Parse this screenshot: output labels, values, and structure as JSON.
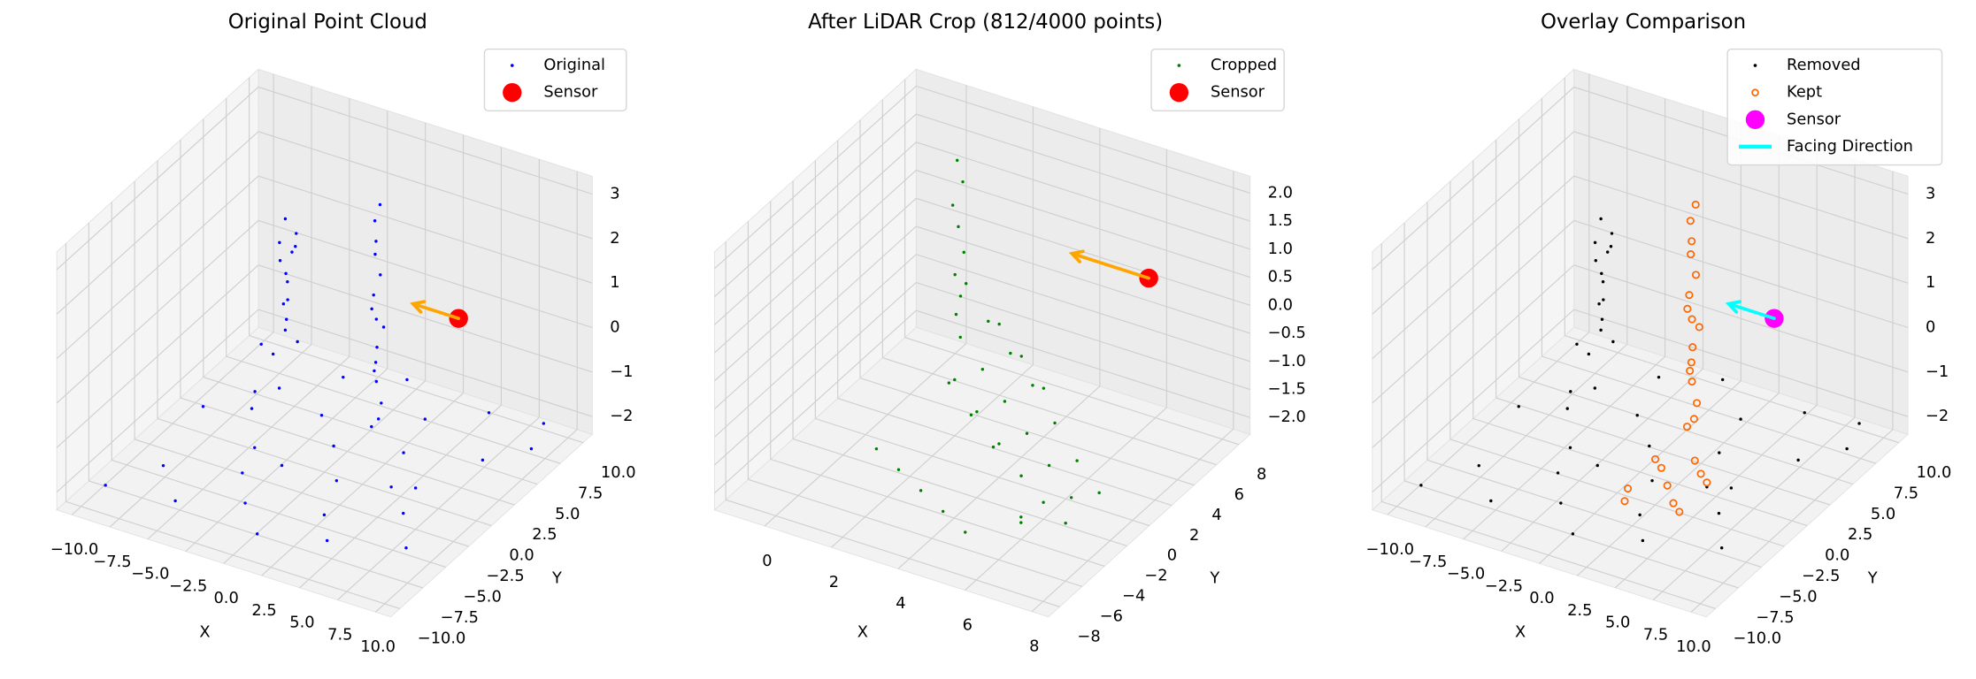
{
  "chart_data": [
    {
      "type": "scatter3d",
      "title": "Original Point Cloud",
      "xlabel": "X",
      "ylabel": "Y",
      "xlim": [
        -11,
        11
      ],
      "ylim": [
        -11,
        11
      ],
      "zlim": [
        -2.4,
        3.4
      ],
      "xticks": [
        {
          "value": -10,
          "label": "−10.0"
        },
        {
          "value": -7.5,
          "label": "−7.5"
        },
        {
          "value": -5,
          "label": "−5.0"
        },
        {
          "value": -2.5,
          "label": "−2.5"
        },
        {
          "value": 0,
          "label": "0.0"
        },
        {
          "value": 2.5,
          "label": "2.5"
        },
        {
          "value": 5,
          "label": "5.0"
        },
        {
          "value": 7.5,
          "label": "7.5"
        },
        {
          "value": 10,
          "label": "10.0"
        }
      ],
      "yticks": [
        {
          "value": -10,
          "label": "−10.0"
        },
        {
          "value": -7.5,
          "label": "−7.5"
        },
        {
          "value": -5,
          "label": "−5.0"
        },
        {
          "value": -2.5,
          "label": "−2.5"
        },
        {
          "value": 0,
          "label": "0.0"
        },
        {
          "value": 2.5,
          "label": "2.5"
        },
        {
          "value": 5,
          "label": "5.0"
        },
        {
          "value": 7.5,
          "label": "7.5"
        },
        {
          "value": 10,
          "label": "10.0"
        }
      ],
      "zticks": [
        {
          "value": -2,
          "label": "−2"
        },
        {
          "value": -1,
          "label": "−1"
        },
        0,
        1,
        2,
        3
      ],
      "grid": true,
      "legend": "upper right",
      "series": [
        {
          "name": "Original",
          "color": "#0000ff",
          "marker": "dot",
          "x": [
            -9,
            -7,
            -5,
            -3,
            -1,
            1,
            3,
            5,
            7,
            9,
            -8,
            -6,
            -4,
            -2,
            0,
            2,
            4,
            6,
            8,
            10,
            -9,
            -6,
            -3,
            0,
            3,
            6,
            9,
            -7,
            -1,
            5,
            -5.5,
            -4.5,
            -5,
            -4.8,
            -5.3,
            -4.6,
            -5.1,
            -4.9,
            -5.4,
            -4.7,
            -5.2,
            -4.4,
            -5,
            -4.8,
            0.8,
            1.2,
            1,
            0.9,
            1.1,
            1.3,
            0.7,
            1,
            1.2,
            0.8,
            1.1,
            0.9,
            1,
            1.2,
            0.8,
            1
          ],
          "y": [
            -9,
            -6,
            -8,
            -4,
            -7,
            -9,
            -5,
            -8,
            -3,
            -6,
            0,
            2,
            -1,
            3,
            1,
            -2,
            2,
            0,
            4,
            6,
            8,
            5,
            7,
            9,
            6,
            8,
            9,
            4,
            -3,
            -1,
            3.5,
            4.5,
            4,
            3.8,
            4.3,
            3.6,
            4.4,
            3.9,
            4.1,
            4.6,
            3.7,
            4.2,
            4,
            4.4,
            3.8,
            4.2,
            4,
            4.1,
            3.9,
            4.3,
            4,
            3.7,
            4.1,
            4.2,
            3.8,
            4,
            4.4,
            3.9,
            4.1,
            4
          ],
          "z": [
            -2,
            -1.9,
            -2.1,
            -2,
            -1.9,
            -2,
            -2.1,
            -1.9,
            -2,
            -2,
            -1.8,
            -2,
            -2.1,
            -1.9,
            -2,
            -2,
            -1.9,
            -2.1,
            -2,
            -1.9,
            -2,
            -2.1,
            -1.9,
            -2,
            -2,
            -1.9,
            -2,
            -2.1,
            -1.8,
            -2,
            -1,
            -0.8,
            -0.5,
            -0.2,
            0,
            0.3,
            0.5,
            0.8,
            1,
            1.3,
            1.5,
            1.7,
            2,
            1.2,
            -2,
            -1.5,
            -1,
            -0.6,
            -0.2,
            0.2,
            0.6,
            1,
            1.4,
            1.8,
            2.2,
            2.6,
            2.9,
            -1.8,
            -0.8,
            0.4
          ]
        },
        {
          "name": "Sensor",
          "color": "#ff0000",
          "marker": "big",
          "x": [
            4
          ],
          "y": [
            8
          ],
          "z": [
            0
          ]
        }
      ],
      "arrow": {
        "color": "#ffa500",
        "x": [
          4,
          1
        ],
        "y": [
          8,
          8
        ],
        "z": [
          0,
          0
        ]
      }
    },
    {
      "type": "scatter3d",
      "title": "After LiDAR Crop (812/4000 points)",
      "xlabel": "X",
      "ylabel": "Y",
      "xlim": [
        -1.5,
        8.5
      ],
      "ylim": [
        -9,
        9
      ],
      "zlim": [
        -2.3,
        2.3
      ],
      "xticks": [
        0,
        2,
        4,
        6,
        8
      ],
      "yticks": [
        {
          "value": -8,
          "label": "−8"
        },
        {
          "value": -6,
          "label": "−6"
        },
        {
          "value": -4,
          "label": "−4"
        },
        {
          "value": -2,
          "label": "−2"
        },
        0,
        2,
        4,
        6,
        8
      ],
      "zticks": [
        {
          "value": -2,
          "label": "−2.0"
        },
        {
          "value": -1.5,
          "label": "−1.5"
        },
        {
          "value": -1,
          "label": "−1.0"
        },
        {
          "value": -0.5,
          "label": "−0.5"
        },
        {
          "value": 0,
          "label": "0.0"
        },
        {
          "value": 0.5,
          "label": "0.5"
        },
        {
          "value": 1,
          "label": "1.0"
        },
        {
          "value": 1.5,
          "label": "1.5"
        },
        {
          "value": 2,
          "label": "2.0"
        }
      ],
      "grid": true,
      "legend": "upper right",
      "series": [
        {
          "name": "Cropped",
          "color": "#008000",
          "marker": "dot",
          "x": [
            0.4,
            0.5,
            0.3,
            0.4,
            0.6,
            0.4,
            0.5,
            0.3,
            1,
            2,
            3,
            4,
            5,
            6,
            7,
            1.5,
            2.5,
            3.5,
            4.5,
            5.5,
            6.5,
            2,
            3,
            4,
            5,
            6,
            1,
            2,
            3,
            4,
            5,
            6,
            7,
            3,
            4,
            5,
            2.5,
            3.5,
            4.5,
            6
          ],
          "y": [
            7,
            7.2,
            6.9,
            7.1,
            7,
            6.8,
            7,
            7.2,
            6,
            5,
            4,
            3,
            2,
            1,
            0,
            4,
            3,
            2,
            1,
            0,
            -1,
            2,
            1,
            0,
            -1,
            -2,
            -2,
            -3,
            -4,
            -5,
            -6,
            -4,
            -3,
            3,
            2,
            1,
            0,
            -1,
            -2,
            -4
          ],
          "z": [
            1.4,
            1,
            0.6,
            0.2,
            -0.2,
            -0.6,
            -1,
            -1.4,
            -0.5,
            -0.8,
            -1,
            -1.2,
            -1.5,
            -1.8,
            -2,
            -1,
            -1.2,
            -1.4,
            -1.6,
            -1.8,
            -2,
            -1.3,
            -1.5,
            -1.7,
            -1.9,
            -2,
            -2,
            -2,
            -2,
            -2,
            -2,
            -2,
            -2,
            -0.3,
            -0.5,
            -0.7,
            -0.9,
            -1.1,
            -1.3,
            -1.9
          ]
        },
        {
          "name": "Sensor",
          "color": "#ff0000",
          "marker": "big",
          "x": [
            5.8
          ],
          "y": [
            8
          ],
          "z": [
            0.15
          ]
        }
      ],
      "arrow": {
        "color": "#ffa500",
        "x": [
          5.8,
          3.5
        ],
        "y": [
          8,
          8
        ],
        "z": [
          0.15,
          0.15
        ]
      }
    },
    {
      "type": "scatter3d",
      "title": "Overlay Comparison",
      "xlabel": "X",
      "ylabel": "Y",
      "xlim": [
        -11,
        11
      ],
      "ylim": [
        -11,
        11
      ],
      "zlim": [
        -2.4,
        3.4
      ],
      "xticks": [
        {
          "value": -10,
          "label": "−10.0"
        },
        {
          "value": -7.5,
          "label": "−7.5"
        },
        {
          "value": -5,
          "label": "−5.0"
        },
        {
          "value": -2.5,
          "label": "−2.5"
        },
        {
          "value": 0,
          "label": "0.0"
        },
        {
          "value": 2.5,
          "label": "2.5"
        },
        {
          "value": 5,
          "label": "5.0"
        },
        {
          "value": 7.5,
          "label": "7.5"
        },
        {
          "value": 10,
          "label": "10.0"
        }
      ],
      "yticks": [
        {
          "value": -10,
          "label": "−10.0"
        },
        {
          "value": -7.5,
          "label": "−7.5"
        },
        {
          "value": -5,
          "label": "−5.0"
        },
        {
          "value": -2.5,
          "label": "−2.5"
        },
        {
          "value": 0,
          "label": "0.0"
        },
        {
          "value": 2.5,
          "label": "2.5"
        },
        {
          "value": 5,
          "label": "5.0"
        },
        {
          "value": 7.5,
          "label": "7.5"
        },
        {
          "value": 10,
          "label": "10.0"
        }
      ],
      "zticks": [
        {
          "value": -2,
          "label": "−2"
        },
        {
          "value": -1,
          "label": "−1"
        },
        0,
        1,
        2,
        3
      ],
      "grid": true,
      "legend": "upper right",
      "series": [
        {
          "name": "Removed",
          "color": "#000000",
          "marker": "dot",
          "x": [
            -9,
            -7,
            -5,
            -3,
            -1,
            1,
            3,
            5,
            7,
            9,
            -8,
            -6,
            -4,
            -2,
            0,
            2,
            4,
            6,
            8,
            10,
            -9,
            -6,
            -3,
            0,
            3,
            6,
            9,
            -7,
            -1,
            5,
            -5.5,
            -4.5,
            -5,
            -4.8,
            -5.3,
            -4.6,
            -5.1,
            -4.9,
            -5.4,
            -4.7,
            -5.2,
            -4.4,
            -5,
            -4.8
          ],
          "y": [
            -9,
            -6,
            -8,
            -4,
            -7,
            -9,
            -5,
            -8,
            -3,
            -6,
            0,
            2,
            -1,
            3,
            1,
            -2,
            2,
            0,
            4,
            6,
            8,
            5,
            7,
            9,
            6,
            8,
            9,
            4,
            -3,
            -1,
            3.5,
            4.5,
            4,
            3.8,
            4.3,
            3.6,
            4.4,
            3.9,
            4.1,
            4.6,
            3.7,
            4.2,
            4,
            4.4
          ],
          "z": [
            -2,
            -1.9,
            -2.1,
            -2,
            -1.9,
            -2,
            -2.1,
            -1.9,
            -2,
            -2,
            -1.8,
            -2,
            -2.1,
            -1.9,
            -2,
            -2,
            -1.9,
            -2.1,
            -2,
            -1.9,
            -2,
            -2.1,
            -1.9,
            -2,
            -2,
            -1.9,
            -2,
            -2.1,
            -1.8,
            -2,
            -1,
            -0.8,
            -0.5,
            -0.2,
            0,
            0.3,
            0.5,
            0.8,
            1,
            1.3,
            1.5,
            1.7,
            2,
            1.2
          ]
        },
        {
          "name": "Kept",
          "color": "#ff6600",
          "marker": "ring",
          "x": [
            0.8,
            1.2,
            1,
            0.9,
            1.1,
            1.3,
            0.7,
            1,
            1.2,
            0.8,
            1.1,
            0.9,
            1,
            1.2,
            0.8,
            1,
            1,
            2,
            3,
            4,
            5,
            2,
            3,
            4,
            1,
            5
          ],
          "y": [
            3.8,
            4.2,
            4,
            4.1,
            3.9,
            4.3,
            4,
            3.7,
            4.1,
            4.2,
            3.8,
            4,
            4.4,
            3.9,
            4.1,
            4,
            0,
            -1,
            -2,
            -3,
            -4,
            -5,
            1,
            0,
            -3,
            -1
          ],
          "z": [
            -2,
            -1.5,
            -1,
            -0.6,
            -0.2,
            0.2,
            0.6,
            1,
            1.4,
            1.8,
            2.2,
            2.6,
            2.9,
            -1.8,
            -0.8,
            0.4,
            -2,
            -1.9,
            -2,
            -2.1,
            -2,
            -1.9,
            -2,
            -2,
            -2.1,
            -1.9
          ]
        },
        {
          "name": "Sensor",
          "color": "#ff00ff",
          "marker": "big",
          "x": [
            4
          ],
          "y": [
            8
          ],
          "z": [
            0
          ]
        }
      ],
      "arrow": {
        "name": "Facing Direction",
        "color": "#00ffff",
        "x": [
          4,
          1
        ],
        "y": [
          8,
          8
        ],
        "z": [
          0,
          0
        ]
      }
    }
  ]
}
